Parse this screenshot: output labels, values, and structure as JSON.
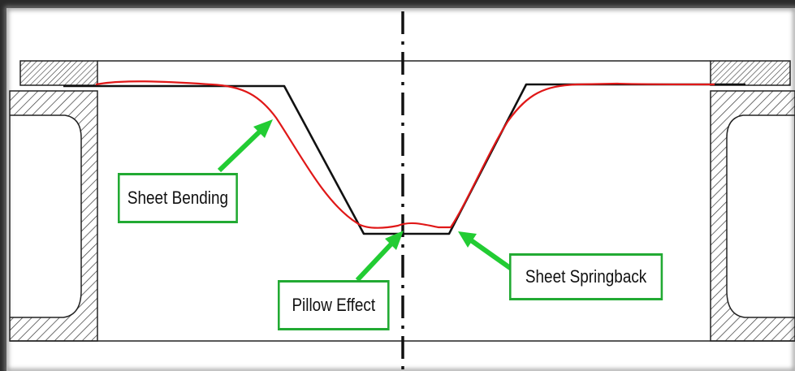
{
  "labels": {
    "sheet_bending": "Sheet Bending",
    "pillow_effect": "Pillow Effect",
    "sheet_springback": "Sheet Springback"
  },
  "colors": {
    "nominal_profile": "#111111",
    "deformed_profile": "#e01818",
    "callout_border": "#22aa33",
    "arrow": "#22cc33",
    "hatch": "#333333"
  }
}
